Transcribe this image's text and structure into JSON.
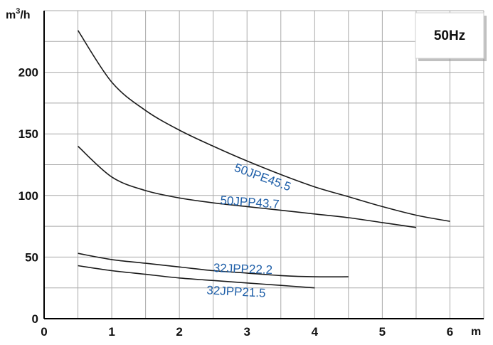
{
  "chart_data": {
    "type": "line",
    "x_unit": "m",
    "y_unit_base": "m",
    "y_unit_exp": "3",
    "y_unit_tail": "/h",
    "frequency_badge": "50Hz",
    "xlim": [
      0,
      6.5
    ],
    "ylim": [
      0,
      250
    ],
    "x_ticks": [
      0,
      1,
      2,
      3,
      4,
      5,
      6
    ],
    "y_ticks": [
      0,
      50,
      100,
      150,
      200
    ],
    "grid": true,
    "colors": {
      "curve": "#1a1a1a",
      "label": "#1f5fa8",
      "grid": "#a9a9a9"
    },
    "series": [
      {
        "name": "50JPE45.5",
        "x": [
          0.5,
          1,
          1.5,
          2,
          2.5,
          3,
          3.5,
          4,
          4.5,
          5,
          5.5,
          6
        ],
        "y": [
          234,
          192,
          169,
          153,
          140,
          128,
          117,
          107,
          99,
          91,
          84,
          79
        ],
        "label_at": [
          2.8,
          120
        ],
        "label_angle": 20
      },
      {
        "name": "50JPP43.7",
        "x": [
          0.5,
          1,
          1.5,
          2,
          2.5,
          3,
          3.5,
          4,
          4.5,
          5,
          5.5
        ],
        "y": [
          140,
          115,
          104,
          98,
          94,
          91,
          88,
          85,
          82,
          78,
          74
        ],
        "label_at": [
          2.6,
          93
        ],
        "label_angle": 4
      },
      {
        "name": "32JPP22.2",
        "x": [
          0.5,
          1,
          1.5,
          2,
          2.5,
          3,
          3.5,
          4,
          4.5
        ],
        "y": [
          53,
          48,
          45,
          42,
          39,
          37,
          35,
          34,
          34
        ],
        "label_at": [
          2.5,
          38
        ],
        "label_angle": 2
      },
      {
        "name": "32JPP21.5",
        "x": [
          0.5,
          1,
          1.5,
          2,
          2.5,
          3,
          3.5,
          4
        ],
        "y": [
          43,
          39,
          36,
          33,
          31,
          29,
          27,
          25
        ],
        "label_at": [
          2.4,
          20
        ],
        "label_angle": 3
      }
    ]
  }
}
